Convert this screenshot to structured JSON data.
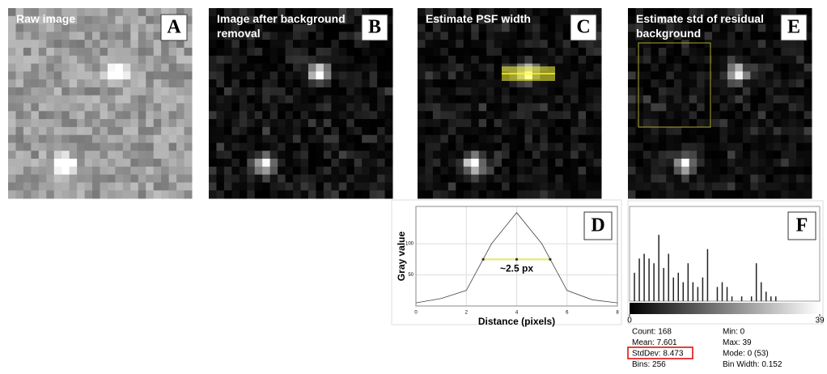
{
  "panels": [
    {
      "letter": "A",
      "label": "Raw image"
    },
    {
      "letter": "B",
      "label": "Image after background removal"
    },
    {
      "letter": "C",
      "label": "Estimate PSF width"
    },
    {
      "letter": "E",
      "label": "Estimate std of residual background"
    }
  ],
  "profile": {
    "type": "line",
    "letter": "D",
    "x": [
      0,
      1,
      2,
      3,
      4,
      5,
      6,
      7,
      8
    ],
    "values": [
      5,
      12,
      25,
      100,
      150,
      100,
      25,
      10,
      5
    ],
    "xlim": [
      0,
      8
    ],
    "xticks": [
      0,
      2,
      4,
      6,
      8
    ],
    "ylim": [
      0,
      160
    ],
    "yticks": [
      50,
      100
    ],
    "xlabel": "Distance (pixels)",
    "ylabel": "Gray value",
    "fwhm": {
      "x": [
        2.67,
        4,
        5.33
      ],
      "y": 75
    },
    "annotation": "~2.5 px",
    "grid": true
  },
  "histogram": {
    "type": "bar",
    "letter": "F",
    "x": [
      1,
      2,
      3,
      4,
      5,
      6,
      7,
      8,
      9,
      10,
      11,
      12,
      13,
      14,
      15,
      16,
      18,
      19,
      20,
      21,
      23,
      25,
      26,
      27,
      28,
      29,
      30
    ],
    "values": [
      6,
      9,
      10,
      9,
      8,
      14,
      7,
      10,
      5,
      6,
      4,
      8,
      4,
      3,
      5,
      11,
      3,
      4,
      3,
      1,
      1,
      1,
      8,
      4,
      2,
      1,
      1
    ],
    "xlim": [
      0,
      39
    ],
    "xticks": [
      0,
      39
    ],
    "ylim": [
      0,
      20
    ],
    "stats": [
      [
        "Count: 168",
        "Min: 0"
      ],
      [
        "Mean: 7.601",
        "Max: 39"
      ],
      [
        "StdDev: 8.473",
        "Mode: 0 (53)"
      ],
      [
        "Bins: 256",
        "Bin Width: 0.152"
      ]
    ]
  }
}
